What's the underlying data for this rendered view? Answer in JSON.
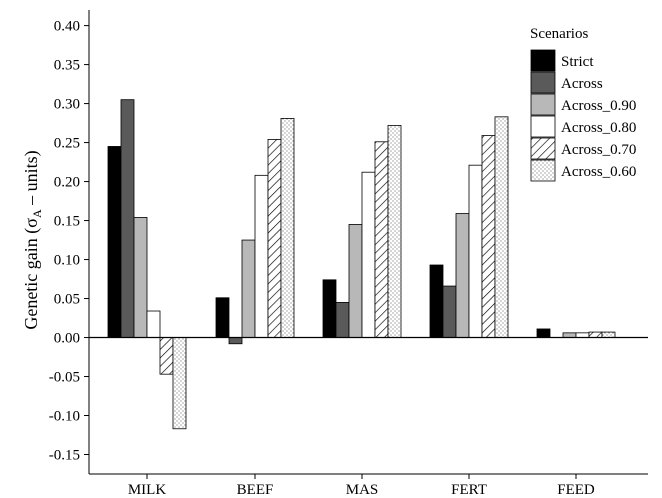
{
  "chart_data": {
    "type": "bar",
    "title": "",
    "xlabel": "",
    "ylabel_parts": {
      "prefix": "Genetic gain (",
      "sigma": "σ",
      "subscript": "A",
      "suffix": " – units)"
    },
    "ylim": [
      -0.175,
      0.42
    ],
    "yticks": [
      "0.40",
      "0.35",
      "0.30",
      "0.25",
      "0.20",
      "0.15",
      "0.10",
      "0.05",
      "0.00",
      "-0.05",
      "-0.10",
      "-0.15"
    ],
    "categories": [
      "MILK",
      "BEEF",
      "MAS",
      "FERT",
      "FEED"
    ],
    "legend": {
      "title": "Scenarios",
      "position": "top-right"
    },
    "grid": false,
    "series": [
      {
        "name": "Strict",
        "fill": "#000000",
        "pattern": "solid",
        "values": [
          0.245,
          0.051,
          0.074,
          0.093,
          0.011
        ]
      },
      {
        "name": "Across",
        "fill": "#5a5a5a",
        "pattern": "solid",
        "values": [
          0.305,
          -0.008,
          0.045,
          0.066,
          0.0
        ]
      },
      {
        "name": "Across_0.90",
        "fill": "#b8b8b8",
        "pattern": "solid",
        "values": [
          0.154,
          0.125,
          0.145,
          0.159,
          0.006
        ]
      },
      {
        "name": "Across_0.80",
        "fill": "#ffffff",
        "pattern": "solid",
        "values": [
          0.034,
          0.208,
          0.212,
          0.221,
          0.006
        ]
      },
      {
        "name": "Across_0.70",
        "fill": "#ffffff",
        "pattern": "hatch",
        "values": [
          -0.047,
          0.254,
          0.251,
          0.259,
          0.007
        ]
      },
      {
        "name": "Across_0.60",
        "fill": "#ffffff",
        "pattern": "dots",
        "values": [
          -0.117,
          0.281,
          0.272,
          0.283,
          0.007
        ]
      }
    ]
  }
}
